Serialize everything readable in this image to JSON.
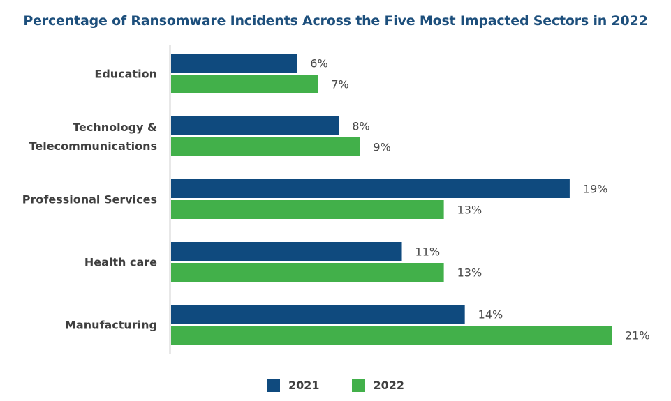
{
  "chart_data": {
    "type": "bar",
    "orientation": "horizontal",
    "title": "Percentage of Ransomware Incidents Across the Five Most Impacted Sectors in 2022",
    "categories": [
      [
        "Education"
      ],
      [
        "Technology &",
        "Telecommunications"
      ],
      [
        "Professional Services"
      ],
      [
        "Health care"
      ],
      [
        "Manufacturing"
      ]
    ],
    "series": [
      {
        "name": "2021",
        "color": "#0f4a7e",
        "values": [
          6,
          8,
          19,
          11,
          14
        ],
        "labels": [
          "6%",
          "8%",
          "19%",
          "11%",
          "14%"
        ]
      },
      {
        "name": "2022",
        "color": "#42b04a",
        "values": [
          7,
          9,
          13,
          13,
          21
        ],
        "labels": [
          "7%",
          "9%",
          "13%",
          "13%",
          "21%"
        ]
      }
    ],
    "xlim": [
      0,
      21
    ],
    "unit": "%",
    "grid": false,
    "legend_position": "bottom"
  }
}
